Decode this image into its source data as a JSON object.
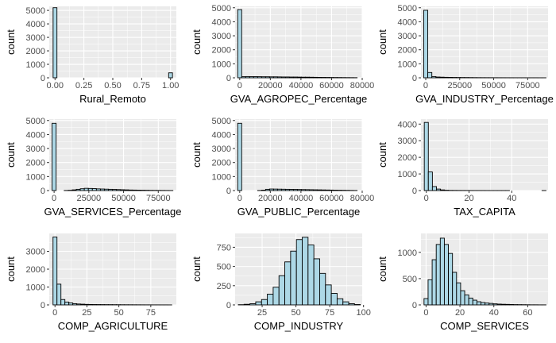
{
  "chart_data": [
    {
      "type": "bar",
      "xlabel": "Rural_Remoto",
      "ylabel": "count",
      "xlim": [
        -0.05,
        1.05
      ],
      "ylim": [
        0,
        5300
      ],
      "xticks": [
        0,
        0.25,
        0.5,
        0.75,
        1
      ],
      "xtick_labels": [
        "0.00",
        "0.25",
        "0.50",
        "0.75",
        "1.00"
      ],
      "yticks": [
        0,
        1000,
        2000,
        3000,
        4000,
        5000
      ],
      "ytick_labels": [
        "0",
        "1000",
        "2000",
        "3000",
        "4000",
        "5000"
      ],
      "bin_width": 0.0333,
      "x": [
        0,
        0.0333,
        0.0667,
        0.1,
        0.1333,
        0.1667,
        0.2,
        0.2333,
        0.2667,
        0.3,
        0.3333,
        0.3667,
        0.4,
        0.4333,
        0.4667,
        0.5,
        0.5333,
        0.5667,
        0.6,
        0.6333,
        0.6667,
        0.7,
        0.7333,
        0.7667,
        0.8,
        0.8333,
        0.8667,
        0.9,
        0.9333,
        0.9667,
        1
      ],
      "values": [
        5200,
        0,
        0,
        0,
        0,
        0,
        0,
        0,
        0,
        0,
        0,
        0,
        0,
        0,
        0,
        0,
        0,
        0,
        0,
        0,
        0,
        0,
        0,
        0,
        0,
        0,
        0,
        0,
        0,
        0,
        370
      ]
    },
    {
      "type": "bar",
      "xlabel": "GVA_AGROPEC_Percentage",
      "ylabel": "count",
      "xlim": [
        -3000,
        80000
      ],
      "ylim": [
        0,
        5100
      ],
      "xticks": [
        0,
        20000,
        40000,
        60000,
        80000
      ],
      "xtick_labels": [
        "0",
        "20000",
        "40000",
        "60000",
        "80000"
      ],
      "yticks": [
        0,
        1000,
        2000,
        3000,
        4000,
        5000
      ],
      "ytick_labels": [
        "0",
        "1000",
        "2000",
        "3000",
        "4000",
        "5000"
      ],
      "bin_width": 2600,
      "x": [
        0,
        2600,
        5200,
        7800,
        10400,
        13000,
        15600,
        18200,
        20800,
        23400,
        26000,
        28600,
        31200,
        33800,
        36400,
        39000,
        41600,
        44200,
        46800,
        49400,
        52000,
        54600,
        57200,
        59800,
        62400,
        65000,
        67600,
        70200,
        72800,
        75400
      ],
      "values": [
        4870,
        80,
        90,
        85,
        85,
        80,
        75,
        75,
        70,
        70,
        65,
        60,
        60,
        55,
        55,
        50,
        45,
        45,
        40,
        35,
        30,
        28,
        25,
        22,
        20,
        18,
        15,
        12,
        10,
        8
      ]
    },
    {
      "type": "bar",
      "xlabel": "GVA_INDUSTRY_Percentage",
      "ylabel": "count",
      "xlim": [
        -3500,
        90000
      ],
      "ylim": [
        0,
        5100
      ],
      "xticks": [
        0,
        25000,
        50000,
        75000
      ],
      "xtick_labels": [
        "0",
        "25000",
        "50000",
        "75000"
      ],
      "yticks": [
        0,
        1000,
        2000,
        3000,
        4000,
        5000
      ],
      "ytick_labels": [
        "0",
        "1000",
        "2000",
        "3000",
        "4000",
        "5000"
      ],
      "bin_width": 3000,
      "x": [
        0,
        3000,
        6000,
        9000,
        12000,
        15000,
        18000,
        21000,
        24000,
        27000,
        30000,
        33000,
        36000,
        39000,
        42000,
        45000,
        48000,
        51000,
        54000,
        57000,
        60000,
        63000,
        66000,
        69000,
        72000,
        75000,
        78000,
        81000,
        84000,
        87000
      ],
      "values": [
        4820,
        380,
        90,
        55,
        45,
        35,
        30,
        25,
        22,
        20,
        18,
        15,
        12,
        10,
        9,
        8,
        7,
        6,
        5,
        5,
        4,
        4,
        3,
        3,
        3,
        2,
        2,
        2,
        1,
        1
      ]
    },
    {
      "type": "bar",
      "xlabel": "GVA_SERVICES_Percentage",
      "ylabel": "count",
      "xlim": [
        -3500,
        88000
      ],
      "ylim": [
        0,
        5100
      ],
      "xticks": [
        0,
        25000,
        50000,
        75000
      ],
      "xtick_labels": [
        "0",
        "25000",
        "50000",
        "75000"
      ],
      "yticks": [
        0,
        1000,
        2000,
        3000,
        4000,
        5000
      ],
      "ytick_labels": [
        "0",
        "1000",
        "2000",
        "3000",
        "4000",
        "5000"
      ],
      "bin_width": 2900,
      "x": [
        0,
        2900,
        5800,
        8700,
        11600,
        14500,
        17400,
        20300,
        23200,
        26100,
        29000,
        31900,
        34800,
        37700,
        40600,
        43500,
        46400,
        49300,
        52200,
        55100,
        58000,
        60900,
        63800,
        66700,
        69600,
        72500,
        75400,
        78300,
        81200,
        84100
      ],
      "values": [
        4800,
        0,
        0,
        5,
        20,
        50,
        90,
        130,
        160,
        150,
        140,
        120,
        110,
        100,
        90,
        80,
        70,
        60,
        50,
        40,
        35,
        30,
        25,
        20,
        15,
        12,
        10,
        8,
        5,
        3
      ]
    },
    {
      "type": "bar",
      "xlabel": "GVA_PUBLIC_Percentage",
      "ylabel": "count",
      "xlim": [
        -3000,
        80000
      ],
      "ylim": [
        0,
        5100
      ],
      "xticks": [
        0,
        20000,
        40000,
        60000,
        80000
      ],
      "xtick_labels": [
        "0",
        "20000",
        "40000",
        "60000",
        "80000"
      ],
      "yticks": [
        0,
        1000,
        2000,
        3000,
        4000,
        5000
      ],
      "ytick_labels": [
        "0",
        "1000",
        "2000",
        "3000",
        "4000",
        "5000"
      ],
      "bin_width": 2600,
      "x": [
        0,
        2600,
        5200,
        7800,
        10400,
        13000,
        15600,
        18200,
        20800,
        23400,
        26000,
        28600,
        31200,
        33800,
        36400,
        39000,
        41600,
        44200,
        46800,
        49400,
        52000,
        54600,
        57200,
        59800,
        62400,
        65000,
        67600,
        70200,
        72800,
        75400
      ],
      "values": [
        4800,
        0,
        0,
        0,
        0,
        5,
        30,
        90,
        110,
        105,
        100,
        95,
        90,
        85,
        80,
        75,
        70,
        65,
        60,
        55,
        50,
        45,
        40,
        35,
        30,
        25,
        20,
        15,
        10,
        5
      ]
    },
    {
      "type": "bar",
      "xlabel": "TAX_CAPITA",
      "ylabel": "count",
      "xlim": [
        -2.5,
        57
      ],
      "ylim": [
        0,
        4300
      ],
      "xticks": [
        0,
        20,
        40
      ],
      "xtick_labels": [
        "0",
        "20",
        "40"
      ],
      "yticks": [
        0,
        1000,
        2000,
        3000,
        4000
      ],
      "ytick_labels": [
        "0",
        "1000",
        "2000",
        "3000",
        "4000"
      ],
      "bin_width": 1.9,
      "x": [
        0,
        1.9,
        3.8,
        5.7,
        7.6,
        9.5,
        11.4,
        13.3,
        15.2,
        17.1,
        19,
        20.9,
        22.8,
        24.7,
        26.6,
        28.5,
        30.4,
        32.3,
        34.2,
        36.1,
        38,
        39.9,
        41.8,
        43.7,
        45.6,
        47.5,
        49.4,
        51.3,
        53.2,
        55.1
      ],
      "values": [
        4100,
        1120,
        240,
        90,
        40,
        20,
        10,
        8,
        6,
        5,
        4,
        3,
        2,
        2,
        2,
        1,
        1,
        1,
        1,
        1,
        1,
        0,
        0,
        0,
        0,
        0,
        0,
        0,
        0,
        1
      ]
    },
    {
      "type": "bar",
      "xlabel": "COMP_AGRICULTURE",
      "ylabel": "count",
      "xlim": [
        -4.5,
        95
      ],
      "ylim": [
        0,
        4000
      ],
      "xticks": [
        0,
        25,
        50,
        75
      ],
      "xtick_labels": [
        "0",
        "25",
        "50",
        "75"
      ],
      "yticks": [
        0,
        1000,
        2000,
        3000
      ],
      "ytick_labels": [
        "0",
        "1000",
        "2000",
        "3000"
      ],
      "bin_width": 3.1,
      "x": [
        0,
        3.1,
        6.2,
        9.3,
        12.4,
        15.5,
        18.6,
        21.7,
        24.8,
        27.9,
        31,
        34.1,
        37.2,
        40.3,
        43.4,
        46.5,
        49.6,
        52.7,
        55.8,
        58.9,
        62,
        65.1,
        68.2,
        71.3,
        74.4,
        77.5,
        80.6,
        83.7,
        86.8,
        89.9
      ],
      "values": [
        3800,
        1160,
        300,
        160,
        110,
        70,
        50,
        40,
        30,
        25,
        22,
        20,
        18,
        16,
        15,
        13,
        12,
        10,
        9,
        8,
        7,
        6,
        5,
        4,
        4,
        3,
        3,
        2,
        2,
        1
      ]
    },
    {
      "type": "bar",
      "xlabel": "COMP_INDUSTRY",
      "ylabel": "count",
      "xlim": [
        5,
        99
      ],
      "ylim": [
        0,
        930
      ],
      "xticks": [
        25,
        50,
        75,
        100
      ],
      "xtick_labels": [
        "25",
        "50",
        "75",
        "100"
      ],
      "yticks": [
        0,
        250,
        500,
        750
      ],
      "ytick_labels": [
        "0",
        "250",
        "500",
        "750"
      ],
      "bin_width": 4.3,
      "x": [
        9.5,
        13.8,
        18.1,
        22.4,
        26.7,
        31,
        35.3,
        39.6,
        43.9,
        48.2,
        52.5,
        56.8,
        61.1,
        65.4,
        69.7,
        74,
        78.3,
        82.6,
        86.9,
        91.2,
        95.5
      ],
      "values": [
        3,
        8,
        15,
        40,
        70,
        140,
        230,
        380,
        560,
        700,
        850,
        880,
        780,
        600,
        410,
        260,
        150,
        80,
        40,
        15,
        5
      ]
    },
    {
      "type": "bar",
      "xlabel": "COMP_SERVICES",
      "ylabel": "count",
      "xlim": [
        -3,
        72
      ],
      "ylim": [
        0,
        1360
      ],
      "xticks": [
        0,
        20,
        40,
        60
      ],
      "xtick_labels": [
        "0",
        "20",
        "40",
        "60"
      ],
      "yticks": [
        0,
        500,
        1000
      ],
      "ytick_labels": [
        "0",
        "500",
        "1000"
      ],
      "bin_width": 2.4,
      "x": [
        0,
        2.4,
        4.8,
        7.2,
        9.6,
        12,
        14.4,
        16.8,
        19.2,
        21.6,
        24,
        26.4,
        28.8,
        31.2,
        33.6,
        36,
        38.4,
        40.8,
        43.2,
        45.6,
        48,
        50.4,
        52.8,
        55.2,
        57.6,
        60,
        62.4,
        64.8,
        67.2,
        69.6
      ],
      "values": [
        120,
        480,
        860,
        1150,
        1270,
        1150,
        980,
        620,
        420,
        270,
        190,
        130,
        90,
        60,
        45,
        35,
        28,
        20,
        15,
        12,
        10,
        8,
        6,
        5,
        4,
        3,
        2,
        2,
        1,
        1
      ]
    }
  ]
}
